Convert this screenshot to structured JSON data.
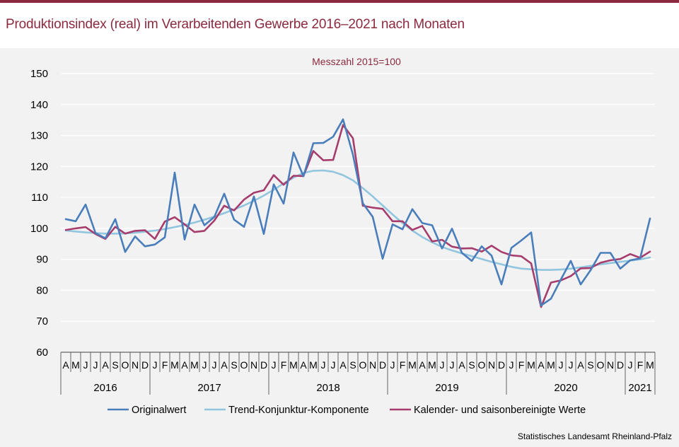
{
  "title": "Produktionsindex (real) im Verarbeitenden Gewerbe 2016–2021 nach Monaten",
  "source": "Statistisches Landesamt Rheinland-Pfalz",
  "chart_data": {
    "type": "line",
    "title": "Produktionsindex (real) im Verarbeitenden Gewerbe 2016–2021 nach Monaten",
    "subtitle": "Messzahl 2015=100",
    "xlabel": "",
    "ylabel": "",
    "ylim": [
      60,
      150
    ],
    "yticks": [
      60,
      70,
      80,
      90,
      100,
      110,
      120,
      130,
      140,
      150
    ],
    "grid": true,
    "legend_position": "bottom",
    "categories": [
      "A",
      "M",
      "J",
      "J",
      "A",
      "S",
      "O",
      "N",
      "D",
      "J",
      "F",
      "M",
      "A",
      "M",
      "J",
      "J",
      "A",
      "S",
      "O",
      "N",
      "D",
      "J",
      "F",
      "M",
      "A",
      "M",
      "J",
      "J",
      "A",
      "S",
      "O",
      "N",
      "D",
      "J",
      "F",
      "M",
      "A",
      "M",
      "J",
      "J",
      "A",
      "S",
      "O",
      "N",
      "D",
      "J",
      "F",
      "M",
      "A",
      "M",
      "J",
      "J",
      "A",
      "S",
      "O",
      "N",
      "D",
      "J",
      "F",
      "M"
    ],
    "year_groups": [
      {
        "label": "2016",
        "count": 9
      },
      {
        "label": "2017",
        "count": 12
      },
      {
        "label": "2018",
        "count": 12
      },
      {
        "label": "2019",
        "count": 12
      },
      {
        "label": "2020",
        "count": 12
      },
      {
        "label": "2021",
        "count": 3
      }
    ],
    "series": [
      {
        "name": "Originalwert",
        "color": "#4a7ebb",
        "values": [
          103,
          102.3,
          107.7,
          98.5,
          96.8,
          103,
          92.4,
          97.4,
          94.2,
          94.8,
          97.1,
          118,
          96.4,
          107.7,
          101,
          103.7,
          111.2,
          102.8,
          100.5,
          110.3,
          98.2,
          114.2,
          108,
          124.5,
          116.8,
          127.5,
          127.6,
          129.6,
          135.2,
          123.8,
          108.1,
          103.7,
          90.2,
          101.3,
          99.7,
          106.2,
          101.7,
          101,
          93.5,
          99.9,
          92.1,
          89.5,
          94.2,
          91.2,
          81.9,
          93.7,
          96.1,
          98.7,
          75.1,
          77.3,
          83.5,
          89.5,
          81.9,
          86.5,
          92.1,
          92.1,
          87,
          89.7,
          90.3,
          103.2
        ]
      },
      {
        "name": "Trend-Konjunktur-Komponente",
        "color": "#92c5de",
        "values": [
          99.3,
          99,
          98.7,
          98.5,
          98.3,
          98.3,
          98.4,
          98.6,
          98.9,
          99.3,
          99.8,
          100.4,
          101.1,
          101.9,
          102.8,
          103.8,
          104.9,
          106.1,
          107.4,
          108.9,
          110.6,
          112.5,
          114.5,
          116.4,
          117.9,
          118.6,
          118.7,
          118.3,
          117.2,
          115.5,
          113,
          110.3,
          107.4,
          104.5,
          101.7,
          99.3,
          97.2,
          95.5,
          94,
          92.9,
          91.9,
          91,
          90.1,
          89.2,
          88.4,
          87.6,
          87,
          86.8,
          86.6,
          86.6,
          86.7,
          87,
          87.4,
          87.9,
          88.4,
          88.8,
          89.2,
          89.6,
          90,
          90.6
        ]
      },
      {
        "name": "Kalender- und saisonbereinigte Werte",
        "color": "#a63d6d",
        "values": [
          99.5,
          100,
          100.4,
          98.2,
          96.6,
          100.5,
          98.3,
          99.2,
          99.4,
          96.6,
          102.2,
          103.6,
          101.3,
          98.8,
          99.2,
          102.5,
          107.3,
          105.8,
          109.3,
          111.5,
          112.3,
          117.2,
          114.1,
          117,
          116.9,
          125,
          122,
          122.1,
          133.4,
          129.1,
          107.3,
          106.7,
          106.3,
          102.3,
          102.3,
          99.5,
          100.8,
          95.8,
          96.3,
          94.1,
          93.5,
          93.6,
          92.5,
          94.4,
          92.4,
          91.3,
          91,
          88.7,
          74.6,
          82.5,
          83.2,
          84.6,
          87.1,
          87.2,
          88.9,
          89.7,
          90.1,
          91.7,
          90.5,
          92.5
        ]
      }
    ]
  }
}
